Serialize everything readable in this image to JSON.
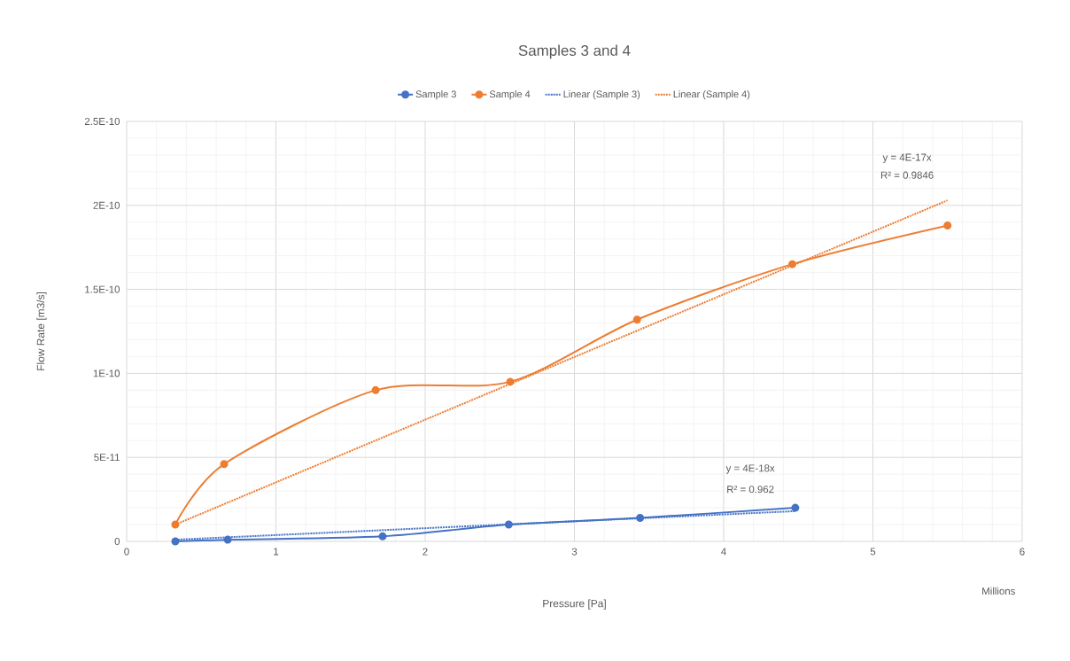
{
  "chart_data": {
    "type": "line",
    "title": "Samples 3 and 4",
    "xlabel": "Pressure [Pa]",
    "ylabel": "Flow Rate [m3/s]",
    "xlim": [
      0,
      6
    ],
    "xticks": [
      0,
      1,
      2,
      3,
      4,
      5,
      6
    ],
    "ylim": [
      0,
      2.5e-10
    ],
    "yticks": [
      0,
      {
        "value": 5e-11,
        "label": "5E-11"
      },
      {
        "value": 1e-10,
        "label": "1E-10"
      },
      {
        "value": 1.5e-10,
        "label": "1.5E-10"
      },
      {
        "value": 2e-10,
        "label": "2E-10"
      },
      {
        "value": 2.5e-10,
        "label": "2.5E-10"
      }
    ],
    "grid": true,
    "legend": "top",
    "series": [
      {
        "name": "Sample 3",
        "color": "#4472c4",
        "marker": "circle",
        "line_style": "solid",
        "x": [
          0.326,
          0.677,
          1.715,
          2.56,
          3.44,
          4.48
        ],
        "values": [
          0,
          1e-12,
          3e-12,
          1e-11,
          1.4e-11,
          2e-11
        ]
      },
      {
        "name": "Sample 4",
        "color": "#ed7d31",
        "marker": "circle",
        "line_style": "solid",
        "x": [
          0.326,
          0.653,
          1.668,
          2.57,
          3.42,
          4.46,
          5.5
        ],
        "values": [
          1e-11,
          4.6e-11,
          9e-11,
          9.5e-11,
          1.32e-10,
          1.65e-10,
          1.88e-10
        ]
      },
      {
        "name": "Linear (Sample 3)",
        "color": "#4472c4",
        "marker": "none",
        "line_style": "dotted",
        "x": [
          0.326,
          4.48
        ],
        "values": [
          1e-12,
          1.8e-11
        ]
      },
      {
        "name": "Linear (Sample 4)",
        "color": "#ed7d31",
        "marker": "none",
        "line_style": "dotted",
        "x": [
          0.326,
          5.5
        ],
        "values": [
          1e-11,
          2.03e-10
        ]
      }
    ],
    "annotations": [
      "y = 4E-17x",
      "R² = 0.9846",
      "y = 4E-18x",
      "R² = 0.962",
      "Millions"
    ]
  }
}
